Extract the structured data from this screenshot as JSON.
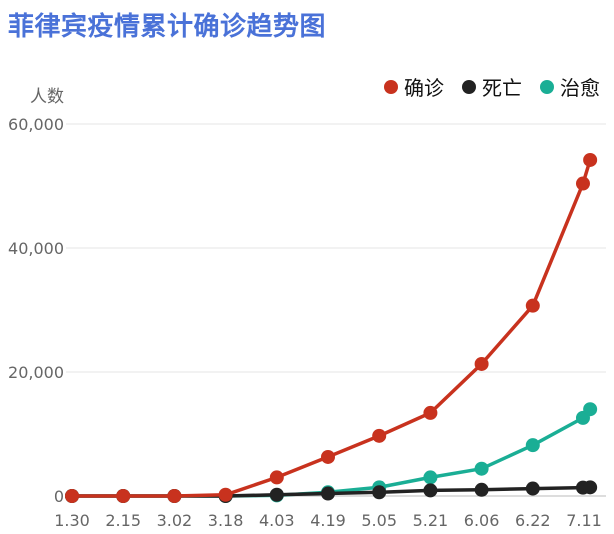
{
  "chart_data": {
    "type": "line",
    "title": "菲律宾疫情累计确诊趋势图",
    "ylabel": "人数",
    "xlabel": "",
    "x": [
      "1.30",
      "2.15",
      "3.02",
      "3.18",
      "4.03",
      "4.19",
      "5.05",
      "5.21",
      "6.06",
      "6.22",
      "7.11"
    ],
    "ylim": [
      0,
      60000
    ],
    "yticks": [
      0,
      20000,
      40000,
      60000
    ],
    "ytick_labels": [
      "0",
      "20,000",
      "40,000",
      "60,000"
    ],
    "grid": true,
    "legend_position": "top-right",
    "series": [
      {
        "name": "确诊",
        "color": "#c8321e",
        "points": [
          [
            0,
            0
          ],
          [
            1,
            0
          ],
          [
            2,
            0
          ],
          [
            3,
            200
          ],
          [
            4,
            3000
          ],
          [
            5,
            6300
          ],
          [
            6,
            9700
          ],
          [
            7,
            13400
          ],
          [
            8,
            21300
          ],
          [
            9,
            30700
          ],
          [
            9.98,
            50400
          ],
          [
            10.12,
            54200
          ]
        ]
      },
      {
        "name": "死亡",
        "color": "#222222",
        "points": [
          [
            0,
            0
          ],
          [
            1,
            0
          ],
          [
            2,
            0
          ],
          [
            3,
            0
          ],
          [
            4,
            200
          ],
          [
            5,
            400
          ],
          [
            6,
            600
          ],
          [
            7,
            900
          ],
          [
            8,
            1000
          ],
          [
            9,
            1200
          ],
          [
            9.98,
            1350
          ],
          [
            10.12,
            1400
          ]
        ]
      },
      {
        "name": "治愈",
        "color": "#1aae95",
        "points": [
          [
            0,
            0
          ],
          [
            1,
            0
          ],
          [
            2,
            0
          ],
          [
            3,
            0
          ],
          [
            4,
            100
          ],
          [
            5,
            600
          ],
          [
            6,
            1400
          ],
          [
            7,
            3000
          ],
          [
            8,
            4400
          ],
          [
            9,
            8200
          ],
          [
            9.98,
            12600
          ],
          [
            10.12,
            14000
          ]
        ]
      }
    ]
  }
}
